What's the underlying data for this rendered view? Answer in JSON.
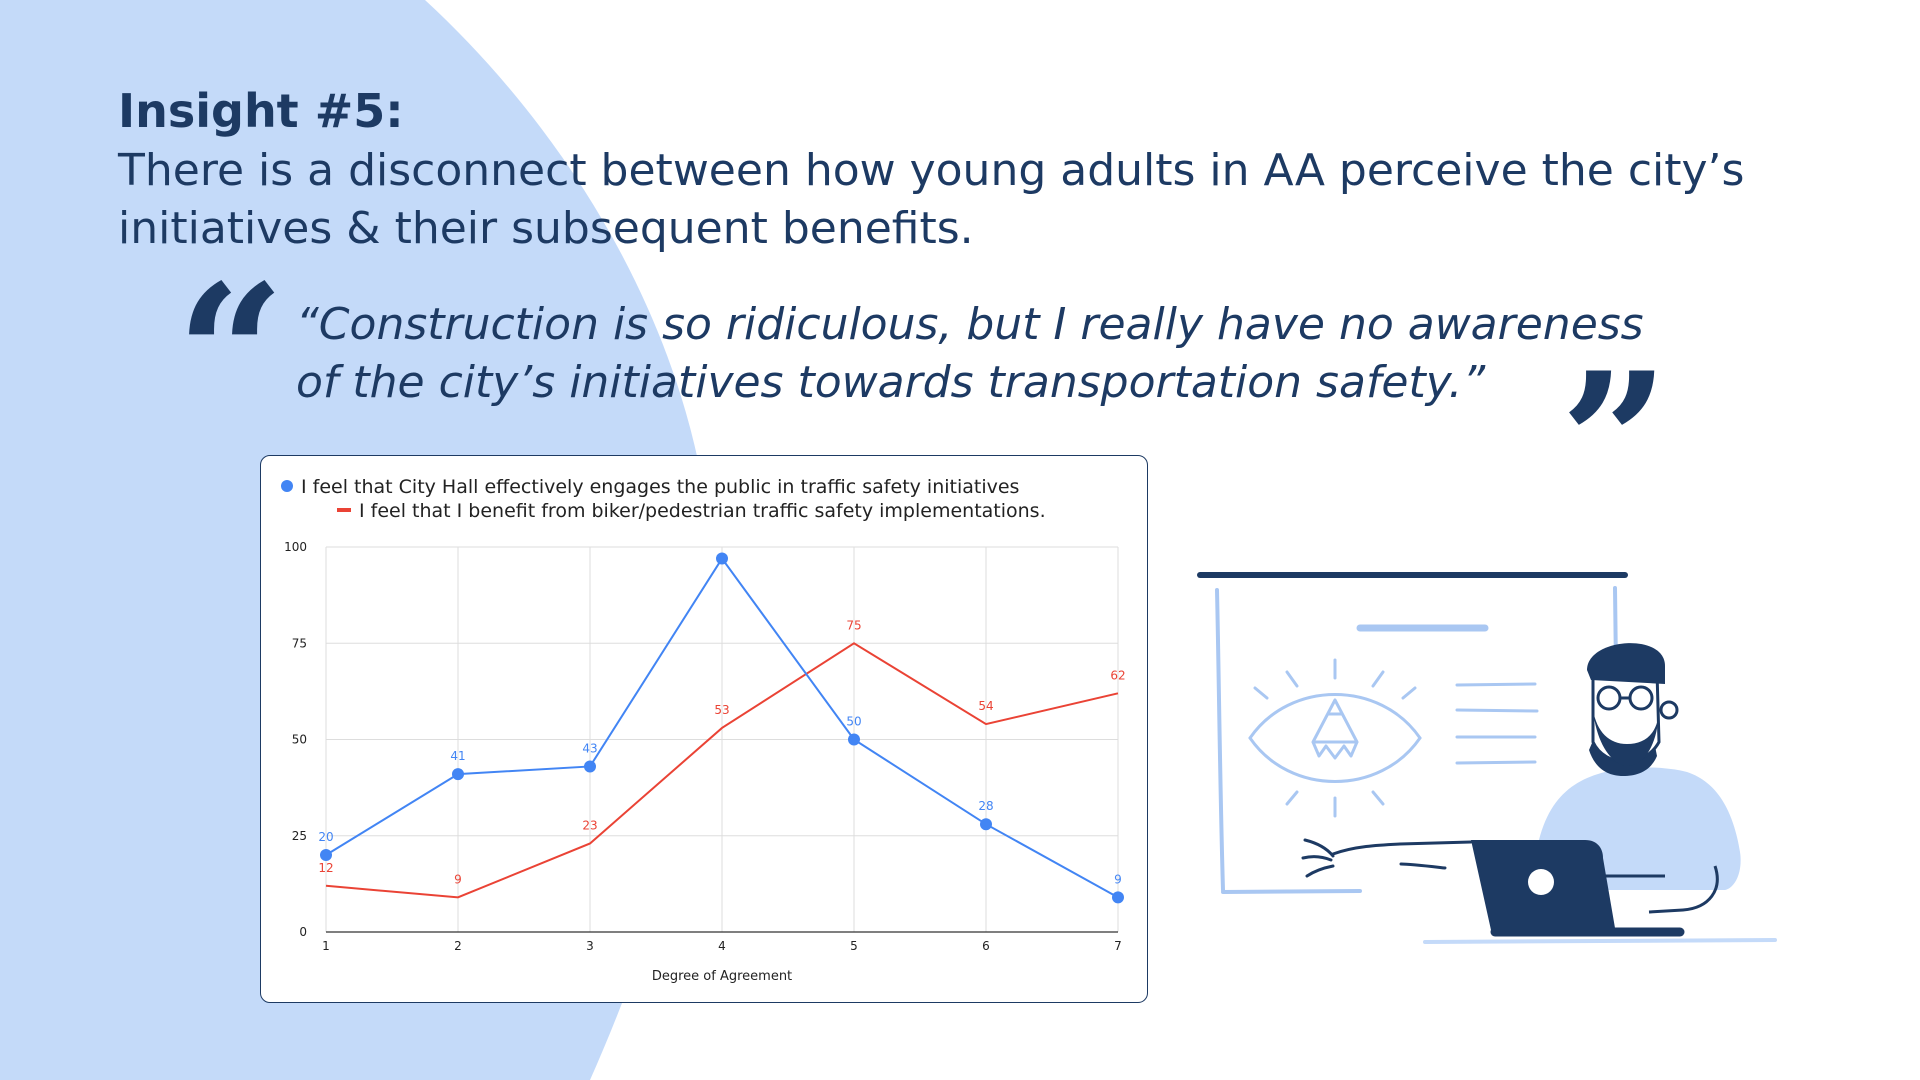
{
  "slide": {
    "heading": "Insight #5:",
    "insight": "There is a disconnect between how young adults in AA perceive the city’s initiatives & their subsequent benefits.",
    "quote": "“Construction is so ridiculous, but I really have no awareness of the city’s initiatives towards transportation safety.”",
    "quote_open_mark": "“",
    "quote_close_mark": "”",
    "colors": {
      "text": "#1d3a63",
      "background_blob": "#c4daf9",
      "series_blue": "#4285f4",
      "series_red": "#ea4335"
    }
  },
  "chart_data": {
    "type": "line",
    "x": [
      1,
      2,
      3,
      4,
      5,
      6,
      7
    ],
    "xlabel": "Degree of Agreement",
    "ylabel": "",
    "ylim": [
      0,
      100
    ],
    "yticks": [
      0,
      25,
      50,
      75,
      100
    ],
    "grid": true,
    "legend_position": "top-left",
    "series": [
      {
        "name": "I feel that City Hall effectively engages the public in traffic safety initiatives",
        "color": "#4285f4",
        "marker": "dot",
        "values": [
          20,
          41,
          43,
          97,
          50,
          28,
          9
        ],
        "labels": [
          "20",
          "41",
          "43",
          "",
          "50",
          "28",
          "9"
        ]
      },
      {
        "name": "I feel that I benefit from biker/pedestrian traffic safety implementations.",
        "color": "#ea4335",
        "marker": "none",
        "values": [
          12,
          9,
          23,
          53,
          75,
          54,
          62
        ],
        "labels": [
          "12",
          "9",
          "23",
          "53",
          "75",
          "54",
          "62"
        ]
      }
    ]
  },
  "illustration": {
    "icons": [
      "presentation-board-icon",
      "eye-icon",
      "pencil-icon",
      "person-with-laptop-icon"
    ]
  }
}
